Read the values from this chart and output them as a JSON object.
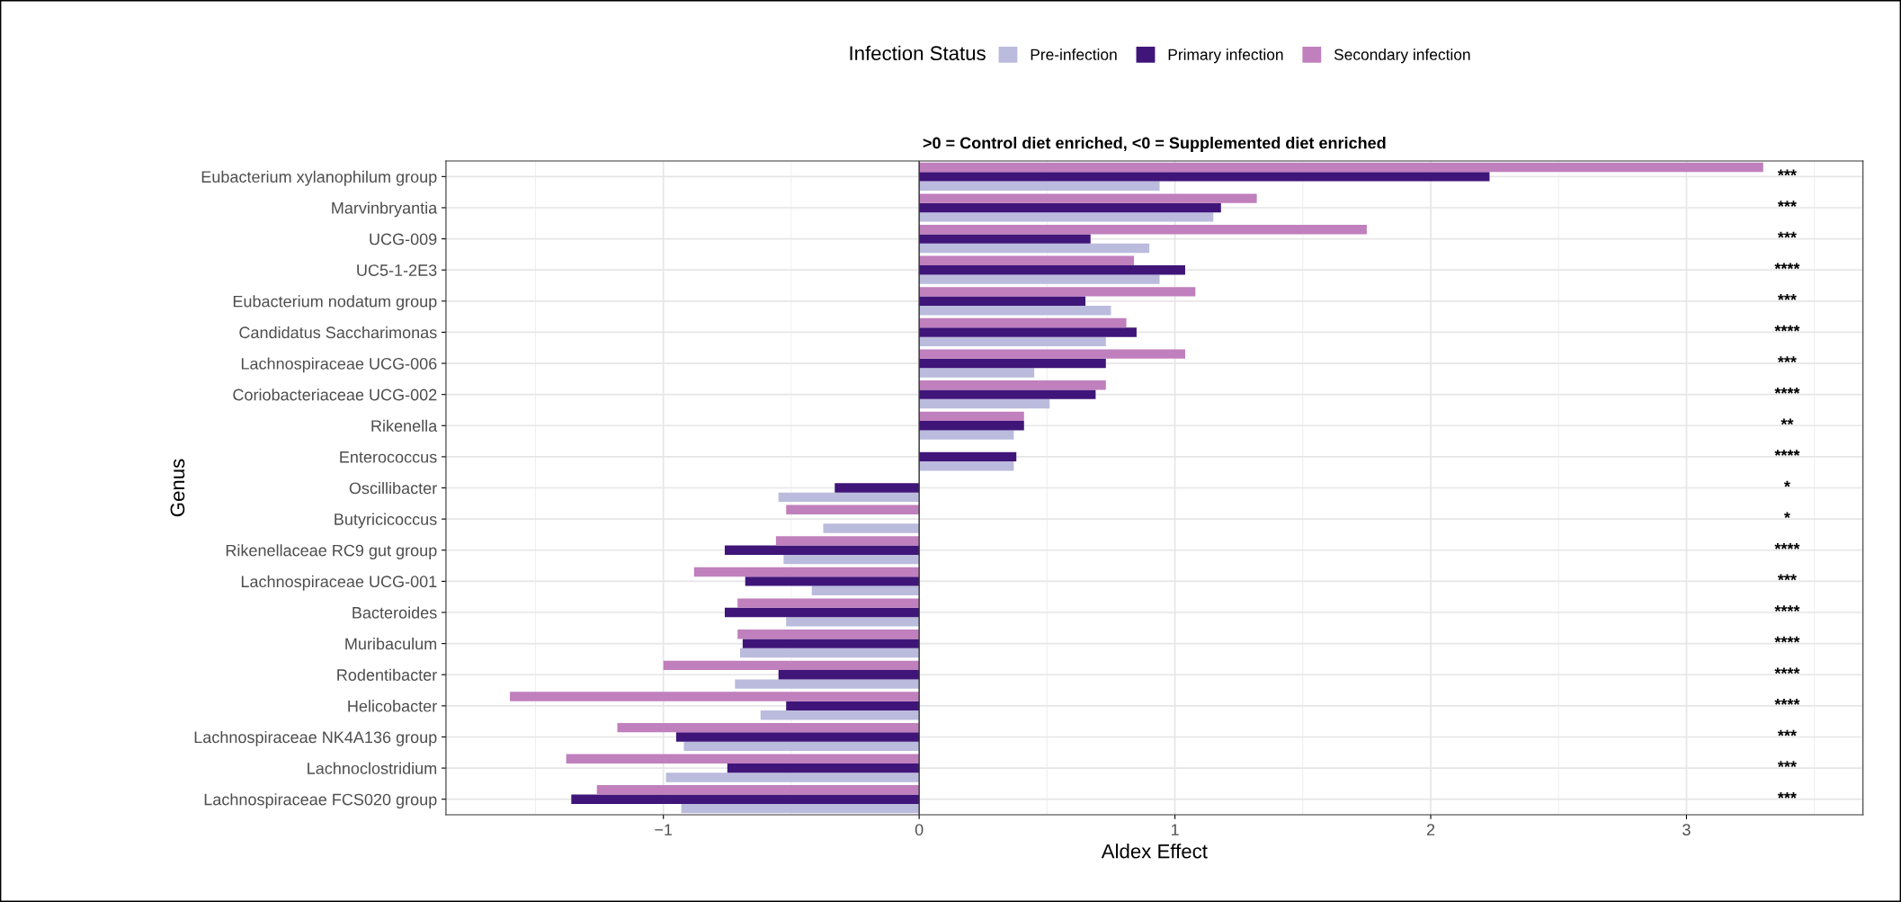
{
  "chart_data": {
    "type": "bar",
    "orientation": "horizontal",
    "title": ">0 = Control diet enriched, <0 = Supplemented diet enriched",
    "xlabel": "Aldex Effect",
    "ylabel": "Genus",
    "legend_title": "Infection Status",
    "legend": "top",
    "grid": true,
    "categories": [
      "Eubacterium xylanophilum group",
      "Marvinbryantia",
      "UCG-009",
      "UC5-1-2E3",
      "Eubacterium nodatum group",
      "Candidatus Saccharimonas",
      "Lachnospiraceae UCG-006",
      "Coriobacteriaceae UCG-002",
      "Rikenella",
      "Enterococcus",
      "Oscillibacter",
      "Butyricicoccus",
      "Rikenellaceae RC9 gut group",
      "Lachnospiraceae UCG-001",
      "Bacteroides",
      "Muribaculum",
      "Rodentibacter",
      "Helicobacter",
      "Lachnospiraceae NK4A136 group",
      "Lachnoclostridium",
      "Lachnospiraceae FCS020 group"
    ],
    "series": [
      {
        "name": "Pre-infection",
        "color": "#babbdd",
        "values": [
          0.94,
          1.15,
          0.9,
          0.94,
          0.75,
          0.73,
          0.45,
          0.51,
          0.37,
          0.37,
          -0.55,
          -0.375,
          -0.53,
          -0.42,
          -0.52,
          -0.7,
          -0.72,
          -0.62,
          -0.92,
          -0.99,
          -0.93
        ]
      },
      {
        "name": "Primary infection",
        "color": "#3f1579",
        "values": [
          2.23,
          1.18,
          0.67,
          1.04,
          0.65,
          0.85,
          0.73,
          0.69,
          0.41,
          0.38,
          -0.33,
          null,
          -0.76,
          -0.68,
          -0.76,
          -0.69,
          -0.55,
          -0.52,
          -0.95,
          -0.75,
          -1.36
        ]
      },
      {
        "name": "Secondary infection",
        "color": "#c07fbd",
        "values": [
          3.3,
          1.32,
          1.75,
          0.84,
          1.08,
          0.81,
          1.04,
          0.73,
          0.41,
          null,
          null,
          -0.52,
          -0.56,
          -0.88,
          -0.71,
          -0.71,
          -1.0,
          -1.6,
          -1.18,
          -1.38,
          -1.26
        ]
      }
    ],
    "xlim": [
      -1.85,
      3.69
    ],
    "xticks": [
      -1,
      0,
      1,
      2,
      3
    ],
    "annotations": [
      "***",
      "***",
      "***",
      "****",
      "***",
      "****",
      "***",
      "****",
      "**",
      "****",
      "*",
      "*",
      "****",
      "***",
      "****",
      "****",
      "****",
      "****",
      "***",
      "***",
      "***"
    ]
  }
}
